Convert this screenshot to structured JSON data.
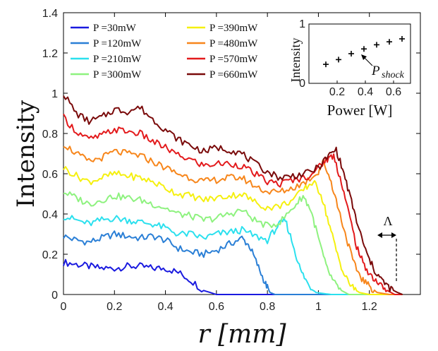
{
  "chart_data": [
    {
      "type": "line",
      "title": "",
      "xlabel": "r [mm]",
      "ylabel": "Intensity",
      "xlim": [
        0,
        1.4
      ],
      "ylim": [
        0,
        1.4
      ],
      "x_ticks": [
        "0",
        "0.2",
        "0.4",
        "0.6",
        "0.8",
        "1",
        "1.2"
      ],
      "y_ticks": [
        "0",
        "0.2",
        "0.4",
        "0.6",
        "0.8",
        "1",
        "1.2",
        "1.4"
      ],
      "legend_position": "top-left",
      "annotation_lambda": "Λ",
      "series": [
        {
          "name": "P =30mW",
          "color": "#1a1adf",
          "x": [
            0,
            0.05,
            0.1,
            0.15,
            0.2,
            0.25,
            0.3,
            0.35,
            0.4,
            0.45,
            0.5,
            0.55,
            0.6,
            0.65,
            0.7,
            0.8,
            1.0,
            1.2,
            1.33
          ],
          "y": [
            0.16,
            0.15,
            0.14,
            0.13,
            0.13,
            0.14,
            0.14,
            0.13,
            0.13,
            0.11,
            0.07,
            0.02,
            0.0,
            0.0,
            0.0,
            0.0,
            0.0,
            0.0,
            0.0
          ]
        },
        {
          "name": "P =120mW",
          "color": "#2a7fd6",
          "x": [
            0,
            0.05,
            0.1,
            0.15,
            0.2,
            0.25,
            0.3,
            0.35,
            0.4,
            0.45,
            0.5,
            0.55,
            0.6,
            0.65,
            0.7,
            0.73,
            0.76,
            0.79,
            0.81,
            0.83,
            0.9,
            1.1,
            1.33
          ],
          "y": [
            0.29,
            0.27,
            0.26,
            0.28,
            0.3,
            0.29,
            0.28,
            0.29,
            0.27,
            0.23,
            0.21,
            0.2,
            0.22,
            0.25,
            0.28,
            0.24,
            0.15,
            0.06,
            0.01,
            0.0,
            0.0,
            0.0,
            0.0
          ]
        },
        {
          "name": "P =210mW",
          "color": "#2be0ee",
          "x": [
            0,
            0.05,
            0.1,
            0.15,
            0.2,
            0.25,
            0.3,
            0.35,
            0.4,
            0.45,
            0.5,
            0.55,
            0.6,
            0.65,
            0.7,
            0.75,
            0.8,
            0.84,
            0.87,
            0.9,
            0.93,
            0.96,
            0.99,
            1.05,
            1.33
          ],
          "y": [
            0.39,
            0.37,
            0.35,
            0.37,
            0.38,
            0.37,
            0.36,
            0.35,
            0.33,
            0.3,
            0.3,
            0.28,
            0.3,
            0.31,
            0.32,
            0.29,
            0.27,
            0.34,
            0.37,
            0.25,
            0.12,
            0.05,
            0.01,
            0.0,
            0.0
          ]
        },
        {
          "name": "P =300mW",
          "color": "#8ef27f",
          "x": [
            0,
            0.05,
            0.1,
            0.15,
            0.2,
            0.25,
            0.3,
            0.35,
            0.4,
            0.45,
            0.5,
            0.55,
            0.6,
            0.65,
            0.7,
            0.75,
            0.8,
            0.85,
            0.9,
            0.94,
            0.97,
            1.0,
            1.03,
            1.06,
            1.09,
            1.12,
            1.2,
            1.33
          ],
          "y": [
            0.51,
            0.48,
            0.45,
            0.47,
            0.49,
            0.48,
            0.47,
            0.45,
            0.43,
            0.4,
            0.39,
            0.37,
            0.38,
            0.4,
            0.42,
            0.37,
            0.34,
            0.36,
            0.43,
            0.49,
            0.42,
            0.28,
            0.14,
            0.06,
            0.02,
            0.0,
            0.0,
            0.0
          ]
        },
        {
          "name": "P =390mW",
          "color": "#f5f00f",
          "x": [
            0,
            0.05,
            0.1,
            0.15,
            0.2,
            0.25,
            0.3,
            0.35,
            0.4,
            0.45,
            0.5,
            0.55,
            0.6,
            0.65,
            0.7,
            0.75,
            0.8,
            0.85,
            0.9,
            0.95,
            0.98,
            1.01,
            1.04,
            1.07,
            1.1,
            1.13,
            1.16,
            1.2,
            1.33
          ],
          "y": [
            0.63,
            0.59,
            0.56,
            0.58,
            0.6,
            0.59,
            0.58,
            0.56,
            0.53,
            0.5,
            0.49,
            0.47,
            0.48,
            0.49,
            0.5,
            0.46,
            0.43,
            0.44,
            0.47,
            0.53,
            0.56,
            0.5,
            0.36,
            0.22,
            0.1,
            0.04,
            0.01,
            0.0,
            0.0
          ]
        },
        {
          "name": "P =480mW",
          "color": "#f7861b",
          "x": [
            0,
            0.05,
            0.1,
            0.15,
            0.2,
            0.25,
            0.3,
            0.35,
            0.4,
            0.45,
            0.5,
            0.55,
            0.6,
            0.65,
            0.7,
            0.75,
            0.8,
            0.85,
            0.9,
            0.95,
            1.0,
            1.02,
            1.05,
            1.08,
            1.11,
            1.14,
            1.17,
            1.2,
            1.23,
            1.28,
            1.33
          ],
          "y": [
            0.75,
            0.7,
            0.66,
            0.68,
            0.71,
            0.7,
            0.69,
            0.66,
            0.63,
            0.6,
            0.58,
            0.56,
            0.57,
            0.58,
            0.58,
            0.54,
            0.51,
            0.51,
            0.53,
            0.56,
            0.61,
            0.66,
            0.56,
            0.42,
            0.28,
            0.15,
            0.08,
            0.04,
            0.01,
            0.0,
            0.0
          ]
        },
        {
          "name": "P =570mW",
          "color": "#e31a1c",
          "x": [
            0,
            0.05,
            0.1,
            0.15,
            0.2,
            0.25,
            0.3,
            0.35,
            0.4,
            0.45,
            0.5,
            0.55,
            0.6,
            0.65,
            0.7,
            0.75,
            0.8,
            0.85,
            0.9,
            0.95,
            1.0,
            1.03,
            1.06,
            1.09,
            1.12,
            1.15,
            1.18,
            1.21,
            1.24,
            1.27,
            1.3,
            1.33
          ],
          "y": [
            0.88,
            0.81,
            0.77,
            0.79,
            0.82,
            0.81,
            0.8,
            0.76,
            0.73,
            0.69,
            0.67,
            0.64,
            0.65,
            0.65,
            0.64,
            0.6,
            0.56,
            0.55,
            0.57,
            0.58,
            0.63,
            0.67,
            0.69,
            0.56,
            0.4,
            0.24,
            0.14,
            0.09,
            0.05,
            0.02,
            0.0,
            0.0
          ]
        },
        {
          "name": "P =660mW",
          "color": "#7a0a0a",
          "x": [
            0,
            0.05,
            0.1,
            0.15,
            0.2,
            0.25,
            0.3,
            0.35,
            0.4,
            0.45,
            0.5,
            0.55,
            0.6,
            0.65,
            0.7,
            0.75,
            0.8,
            0.85,
            0.9,
            0.95,
            1.0,
            1.04,
            1.07,
            1.1,
            1.13,
            1.16,
            1.19,
            1.22,
            1.25,
            1.28,
            1.31,
            1.33
          ],
          "y": [
            1.0,
            0.9,
            0.86,
            0.88,
            0.92,
            0.91,
            0.93,
            0.87,
            0.82,
            0.77,
            0.74,
            0.71,
            0.73,
            0.72,
            0.7,
            0.65,
            0.61,
            0.58,
            0.59,
            0.6,
            0.63,
            0.69,
            0.72,
            0.6,
            0.46,
            0.32,
            0.2,
            0.12,
            0.07,
            0.03,
            0.01,
            0.0
          ]
        }
      ]
    },
    {
      "type": "scatter",
      "title": "",
      "xlabel": "Power [W]",
      "ylabel": "Intensity",
      "xlim": [
        0,
        0.72
      ],
      "ylim": [
        0,
        1
      ],
      "x_ticks": [
        "0.2",
        "0.4",
        "0.6"
      ],
      "y_ticks": [
        "0",
        "1"
      ],
      "annotation_main": "P",
      "annotation_sub": "shock",
      "x": [
        0.12,
        0.21,
        0.3,
        0.39,
        0.48,
        0.57,
        0.66
      ],
      "y": [
        0.32,
        0.4,
        0.5,
        0.58,
        0.65,
        0.7,
        0.75
      ]
    }
  ]
}
